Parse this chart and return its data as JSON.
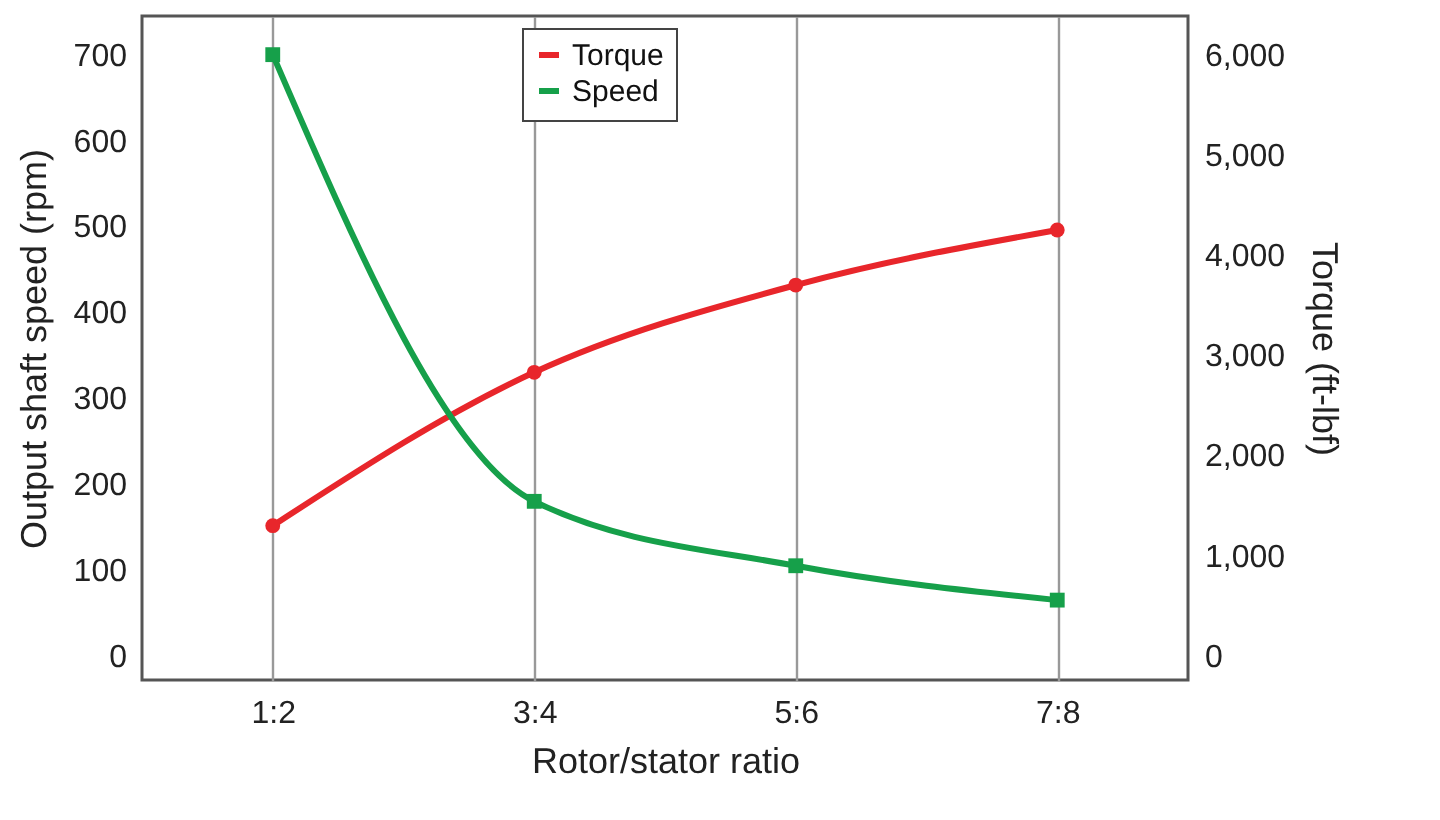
{
  "chart_data": {
    "type": "line",
    "xlabel": "Rotor/stator ratio",
    "ylabel": "Output shaft speed (rpm)",
    "y2label": "Torque (ft-lbf)",
    "categories": [
      "1:2",
      "3:4",
      "5:6",
      "7:8"
    ],
    "series": [
      {
        "name": "Torque",
        "color": "#e8262b",
        "axis": "y2",
        "marker": "circle",
        "values": [
          1300,
          2830,
          3700,
          4250
        ]
      },
      {
        "name": "Speed",
        "color": "#16a04a",
        "marker": "square",
        "values": [
          700,
          180,
          105,
          65
        ]
      }
    ],
    "ylim": [
      -28,
      745
    ],
    "yticks": [
      0,
      100,
      200,
      300,
      400,
      500,
      600,
      700
    ],
    "y2lim": [
      -240,
      6385
    ],
    "y2ticks": [
      {
        "value": 0,
        "label": "0"
      },
      {
        "value": 1000,
        "label": "1,000"
      },
      {
        "value": 2000,
        "label": "2,000"
      },
      {
        "value": 3000,
        "label": "3,000"
      },
      {
        "value": 4000,
        "label": "4,000"
      },
      {
        "value": 5000,
        "label": "5,000"
      },
      {
        "value": 6000,
        "label": "6,000"
      }
    ],
    "grid": "x",
    "legend": "top",
    "line_style": "solid"
  }
}
